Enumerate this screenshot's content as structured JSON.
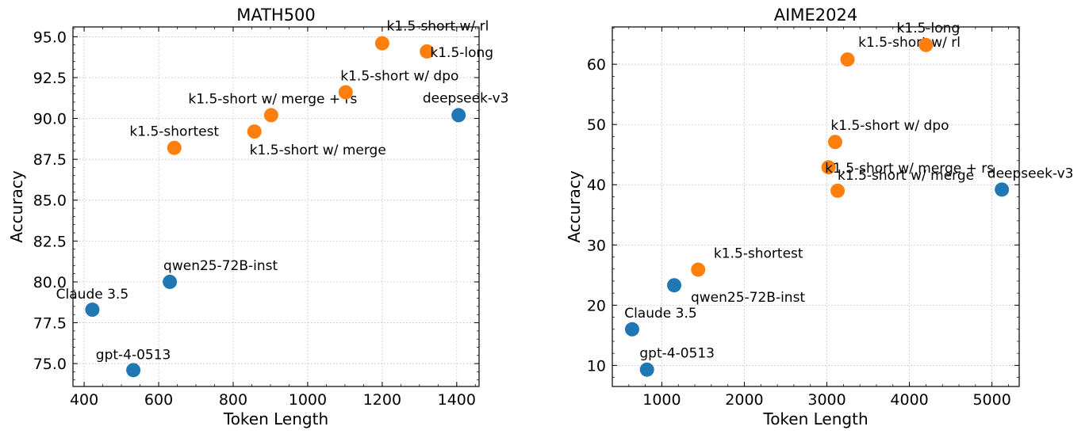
{
  "chart_data": [
    {
      "type": "scatter",
      "title": "MATH500",
      "xlabel": "Token Length",
      "ylabel": "Accuracy",
      "xlim": [
        370,
        1460
      ],
      "ylim": [
        73.6,
        95.6
      ],
      "xticks": [
        400,
        600,
        800,
        1000,
        1200,
        1400
      ],
      "xtick_labels": [
        "400",
        "600",
        "800",
        "1000",
        "1200",
        "1400"
      ],
      "xminor_step": 50,
      "yticks": [
        75.0,
        77.5,
        80.0,
        82.5,
        85.0,
        87.5,
        90.0,
        92.5,
        95.0
      ],
      "ytick_labels": [
        "75.0",
        "77.5",
        "80.0",
        "82.5",
        "85.0",
        "87.5",
        "90.0",
        "92.5",
        "95.0"
      ],
      "yminor_step": 0.5,
      "grid": true,
      "colors": {
        "baseline": "#1f77b4",
        "k1.5": "#ff7f0e"
      },
      "points": [
        {
          "label": "Claude 3.5",
          "x": 422,
          "y": 78.3,
          "group": "baseline"
        },
        {
          "label": "gpt-4-0513",
          "x": 532,
          "y": 74.6,
          "group": "baseline"
        },
        {
          "label": "qwen25-72B-inst",
          "x": 630,
          "y": 80.0,
          "group": "baseline"
        },
        {
          "label": "deepseek-v3",
          "x": 1405,
          "y": 90.2,
          "group": "baseline"
        },
        {
          "label": "k1.5-shortest",
          "x": 642,
          "y": 88.2,
          "group": "k1.5"
        },
        {
          "label": "k1.5-short w/ merge",
          "x": 857,
          "y": 89.2,
          "group": "k1.5"
        },
        {
          "label": "k1.5-short w/ merge + rs",
          "x": 902,
          "y": 90.2,
          "group": "k1.5"
        },
        {
          "label": "k1.5-short w/ dpo",
          "x": 1102,
          "y": 91.6,
          "group": "k1.5"
        },
        {
          "label": "k1.5-short w/ rl",
          "x": 1200,
          "y": 94.6,
          "group": "k1.5"
        },
        {
          "label": "k1.5-long",
          "x": 1320,
          "y": 94.1,
          "group": "k1.5"
        }
      ]
    },
    {
      "type": "scatter",
      "title": "AIME2024",
      "xlabel": "Token Length",
      "ylabel": "Accuracy",
      "xlim": [
        400,
        5330
      ],
      "ylim": [
        6.5,
        66.2
      ],
      "xticks": [
        1000,
        2000,
        3000,
        4000,
        5000
      ],
      "xtick_labels": [
        "1000",
        "2000",
        "3000",
        "4000",
        "5000"
      ],
      "xminor_step": 200,
      "yticks": [
        10,
        20,
        30,
        40,
        50,
        60
      ],
      "ytick_labels": [
        "10",
        "20",
        "30",
        "40",
        "50",
        "60"
      ],
      "yminor_step": 2,
      "grid": true,
      "colors": {
        "baseline": "#1f77b4",
        "k1.5": "#ff7f0e"
      },
      "points": [
        {
          "label": "Claude 3.5",
          "x": 640,
          "y": 16.0,
          "group": "baseline"
        },
        {
          "label": "gpt-4-0513",
          "x": 820,
          "y": 9.3,
          "group": "baseline"
        },
        {
          "label": "qwen25-72B-inst",
          "x": 1150,
          "y": 23.3,
          "group": "baseline"
        },
        {
          "label": "deepseek-v3",
          "x": 5120,
          "y": 39.2,
          "group": "baseline"
        },
        {
          "label": "k1.5-shortest",
          "x": 1440,
          "y": 25.9,
          "group": "k1.5"
        },
        {
          "label": "k1.5-short w/ merge + rs",
          "x": 3020,
          "y": 42.9,
          "group": "k1.5"
        },
        {
          "label": "k1.5-short w/ dpo",
          "x": 3100,
          "y": 47.1,
          "group": "k1.5"
        },
        {
          "label": "k1.5-short w/ merge",
          "x": 3130,
          "y": 39.0,
          "group": "k1.5"
        },
        {
          "label": "k1.5-short w/ rl",
          "x": 3250,
          "y": 60.8,
          "group": "k1.5"
        },
        {
          "label": "k1.5-long",
          "x": 4200,
          "y": 63.2,
          "group": "k1.5"
        }
      ]
    }
  ]
}
